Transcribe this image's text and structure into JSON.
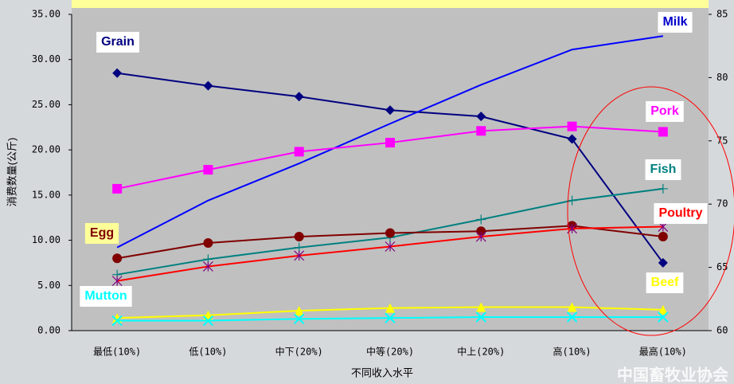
{
  "chart_data": {
    "type": "line",
    "ylabel": "消费数量(公斤)",
    "xlabel": "不同收入水平",
    "watermark": "中国畜牧业协会",
    "categories": [
      "最低(10%)",
      "低(10%)",
      "中下(20%)",
      "中等(20%)",
      "中上(20%)",
      "高(10%)",
      "最高(10%)"
    ],
    "ylim": [
      0,
      35
    ],
    "yticks": [
      {
        "value": 0,
        "label": "0.00"
      },
      {
        "value": 5,
        "label": "5.00"
      },
      {
        "value": 10,
        "label": "10.00"
      },
      {
        "value": 15,
        "label": "15.00"
      },
      {
        "value": 20,
        "label": "20.00"
      },
      {
        "value": 25,
        "label": "25.00"
      },
      {
        "value": 30,
        "label": "30.00"
      },
      {
        "value": 35,
        "label": "35.00"
      }
    ],
    "y2lim": [
      60,
      85
    ],
    "y2ticks": [
      60,
      65,
      70,
      75,
      80,
      85
    ],
    "series": [
      {
        "name": "Grain",
        "color": "#000080",
        "marker": "diamond",
        "values": [
          28.5,
          27.1,
          25.9,
          24.4,
          23.7,
          21.2,
          7.5
        ]
      },
      {
        "name": "Milk",
        "color": "#0000ff",
        "marker": "none",
        "values": [
          9.2,
          14.4,
          18.5,
          22.9,
          27.2,
          31.1,
          32.6
        ]
      },
      {
        "name": "Pork",
        "color": "#ff00ff",
        "marker": "square",
        "values": [
          15.7,
          17.8,
          19.8,
          20.8,
          22.1,
          22.6,
          22.0
        ]
      },
      {
        "name": "Fish",
        "color": "#008080",
        "marker": "plus",
        "values": [
          6.2,
          7.9,
          9.2,
          10.3,
          12.3,
          14.4,
          15.7
        ]
      },
      {
        "name": "Egg",
        "color": "#800000",
        "marker": "circle",
        "values": [
          8.0,
          9.7,
          10.4,
          10.8,
          11.0,
          11.6,
          10.4
        ]
      },
      {
        "name": "Poultry",
        "color": "#ff0000",
        "marker": "star",
        "values": [
          5.5,
          7.1,
          8.3,
          9.3,
          10.4,
          11.3,
          11.5
        ]
      },
      {
        "name": "Beef",
        "color": "#ffff00",
        "marker": "triangle",
        "values": [
          1.4,
          1.7,
          2.2,
          2.5,
          2.6,
          2.6,
          2.3
        ]
      },
      {
        "name": "Mutton",
        "color": "#00ffff",
        "marker": "cross",
        "values": [
          1.1,
          1.1,
          1.3,
          1.4,
          1.5,
          1.5,
          1.5
        ]
      }
    ]
  }
}
